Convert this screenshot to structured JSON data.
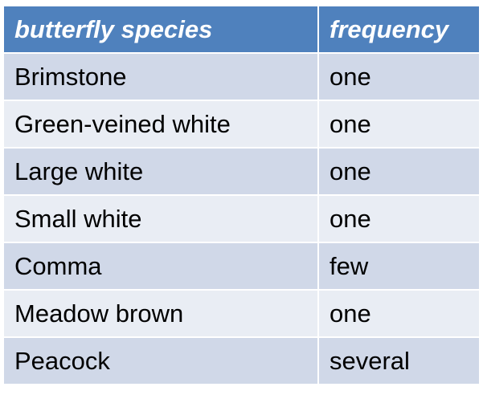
{
  "table": {
    "headers": [
      "butterfly species",
      "frequency"
    ],
    "rows": [
      [
        "Brimstone",
        "one"
      ],
      [
        "Green-veined white",
        "one"
      ],
      [
        "Large white",
        "one"
      ],
      [
        "Small white",
        "one"
      ],
      [
        "Comma",
        "few"
      ],
      [
        "Meadow brown",
        "one"
      ],
      [
        "Peacock",
        "several"
      ]
    ],
    "colors": {
      "header_bg": "#4f81bd",
      "header_text": "#ffffff",
      "row_odd_bg": "#d0d8e8",
      "row_even_bg": "#e9edf4"
    }
  }
}
